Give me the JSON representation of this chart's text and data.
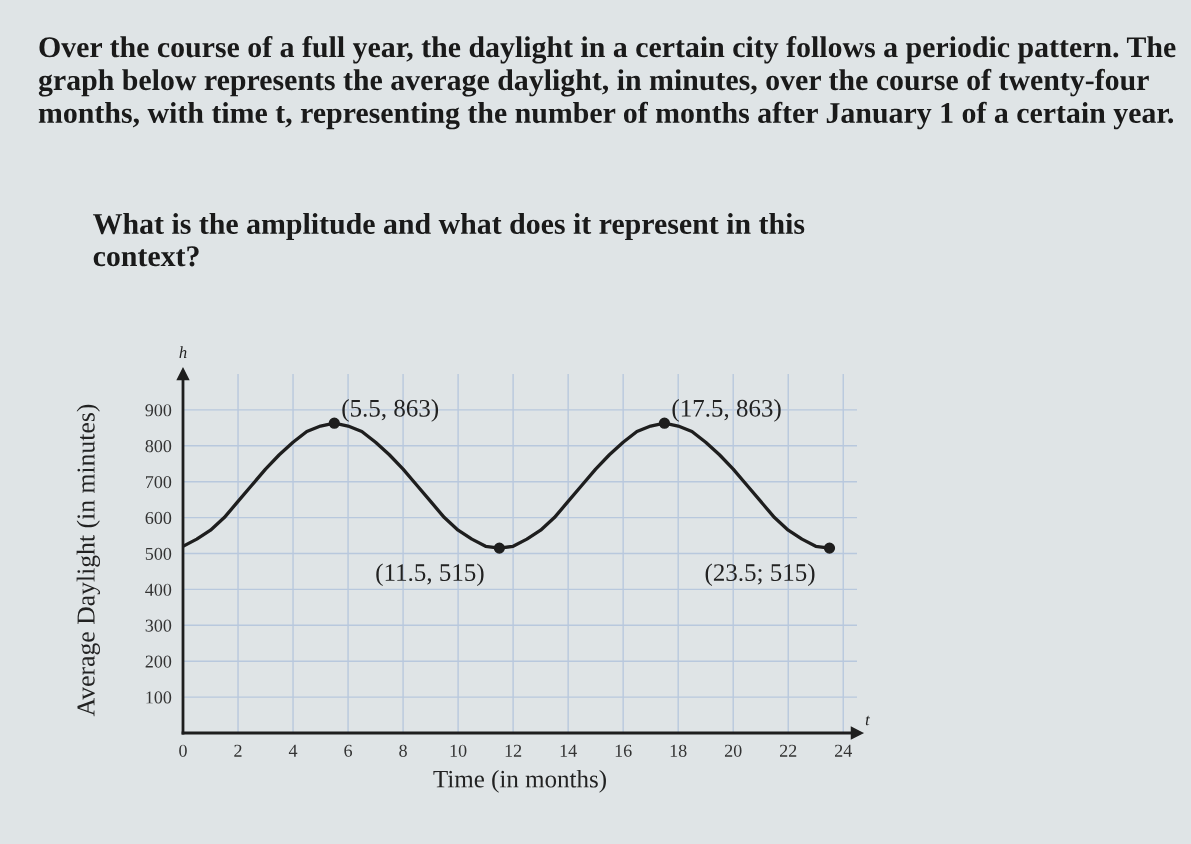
{
  "chart_data": {
    "type": "line",
    "title": "Over the course of a full year, the daylight in a certain city follows a periodic pattern. The graph below represents the average daylight, in minutes, over the course of twenty-four months, with time t, representing the number of months after January 1 of a certain year.",
    "subtitle": "What is the amplitude and what does it represent in this context?",
    "xlabel": "Time (in months)",
    "ylabel": "Average Daylight (in minutes)",
    "series": [
      {
        "color": "#1e1e1e",
        "x": [
          0,
          0.5,
          1,
          1.5,
          2,
          2.5,
          3,
          3.5,
          4,
          4.5,
          5,
          5.5,
          6,
          6.5,
          7,
          7.5,
          8,
          8.5,
          9,
          9.5,
          10,
          10.5,
          11,
          11.5,
          12,
          12.5,
          13,
          13.5,
          14,
          14.5,
          15,
          15.5,
          16,
          16.5,
          17,
          17.5,
          18,
          18.5,
          19,
          19.5,
          20,
          20.5,
          21,
          21.5,
          22,
          22.5,
          23,
          23.5
        ],
        "values": [
          520,
          540,
          565,
          600,
          645,
          690,
          735,
          775,
          810,
          840,
          855,
          863,
          855,
          840,
          810,
          775,
          735,
          690,
          645,
          600,
          565,
          540,
          520,
          515,
          520,
          540,
          565,
          600,
          645,
          690,
          735,
          775,
          810,
          840,
          855,
          863,
          855,
          840,
          810,
          775,
          735,
          690,
          645,
          600,
          565,
          540,
          520,
          515
        ]
      },
      {
        "type": "scatter",
        "color": "#1e1e1e",
        "marker": "circle",
        "x": [
          5.5,
          11.5,
          17.5,
          23.5
        ],
        "values": [
          863,
          515,
          863,
          515
        ]
      }
    ],
    "xlim": [
      0,
      24.5
    ],
    "ylim": [
      0,
      1000
    ],
    "xticks": [
      0,
      2,
      4,
      6,
      8,
      10,
      12,
      14,
      16,
      18,
      20,
      22,
      24
    ],
    "yticks": [
      100,
      200,
      300,
      400,
      500,
      600,
      700,
      800,
      900
    ],
    "grid": true,
    "annotations": [
      {
        "text": "(5.5, 863)",
        "x": 5.5,
        "y": 863
      },
      {
        "text": "(11.5, 515)",
        "x": 11.5,
        "y": 515
      },
      {
        "text": "(17.5, 863)",
        "x": 17.5,
        "y": 863
      },
      {
        "text": "(23.5; 515)",
        "x": 23.5,
        "y": 515
      },
      "h",
      "t"
    ]
  }
}
